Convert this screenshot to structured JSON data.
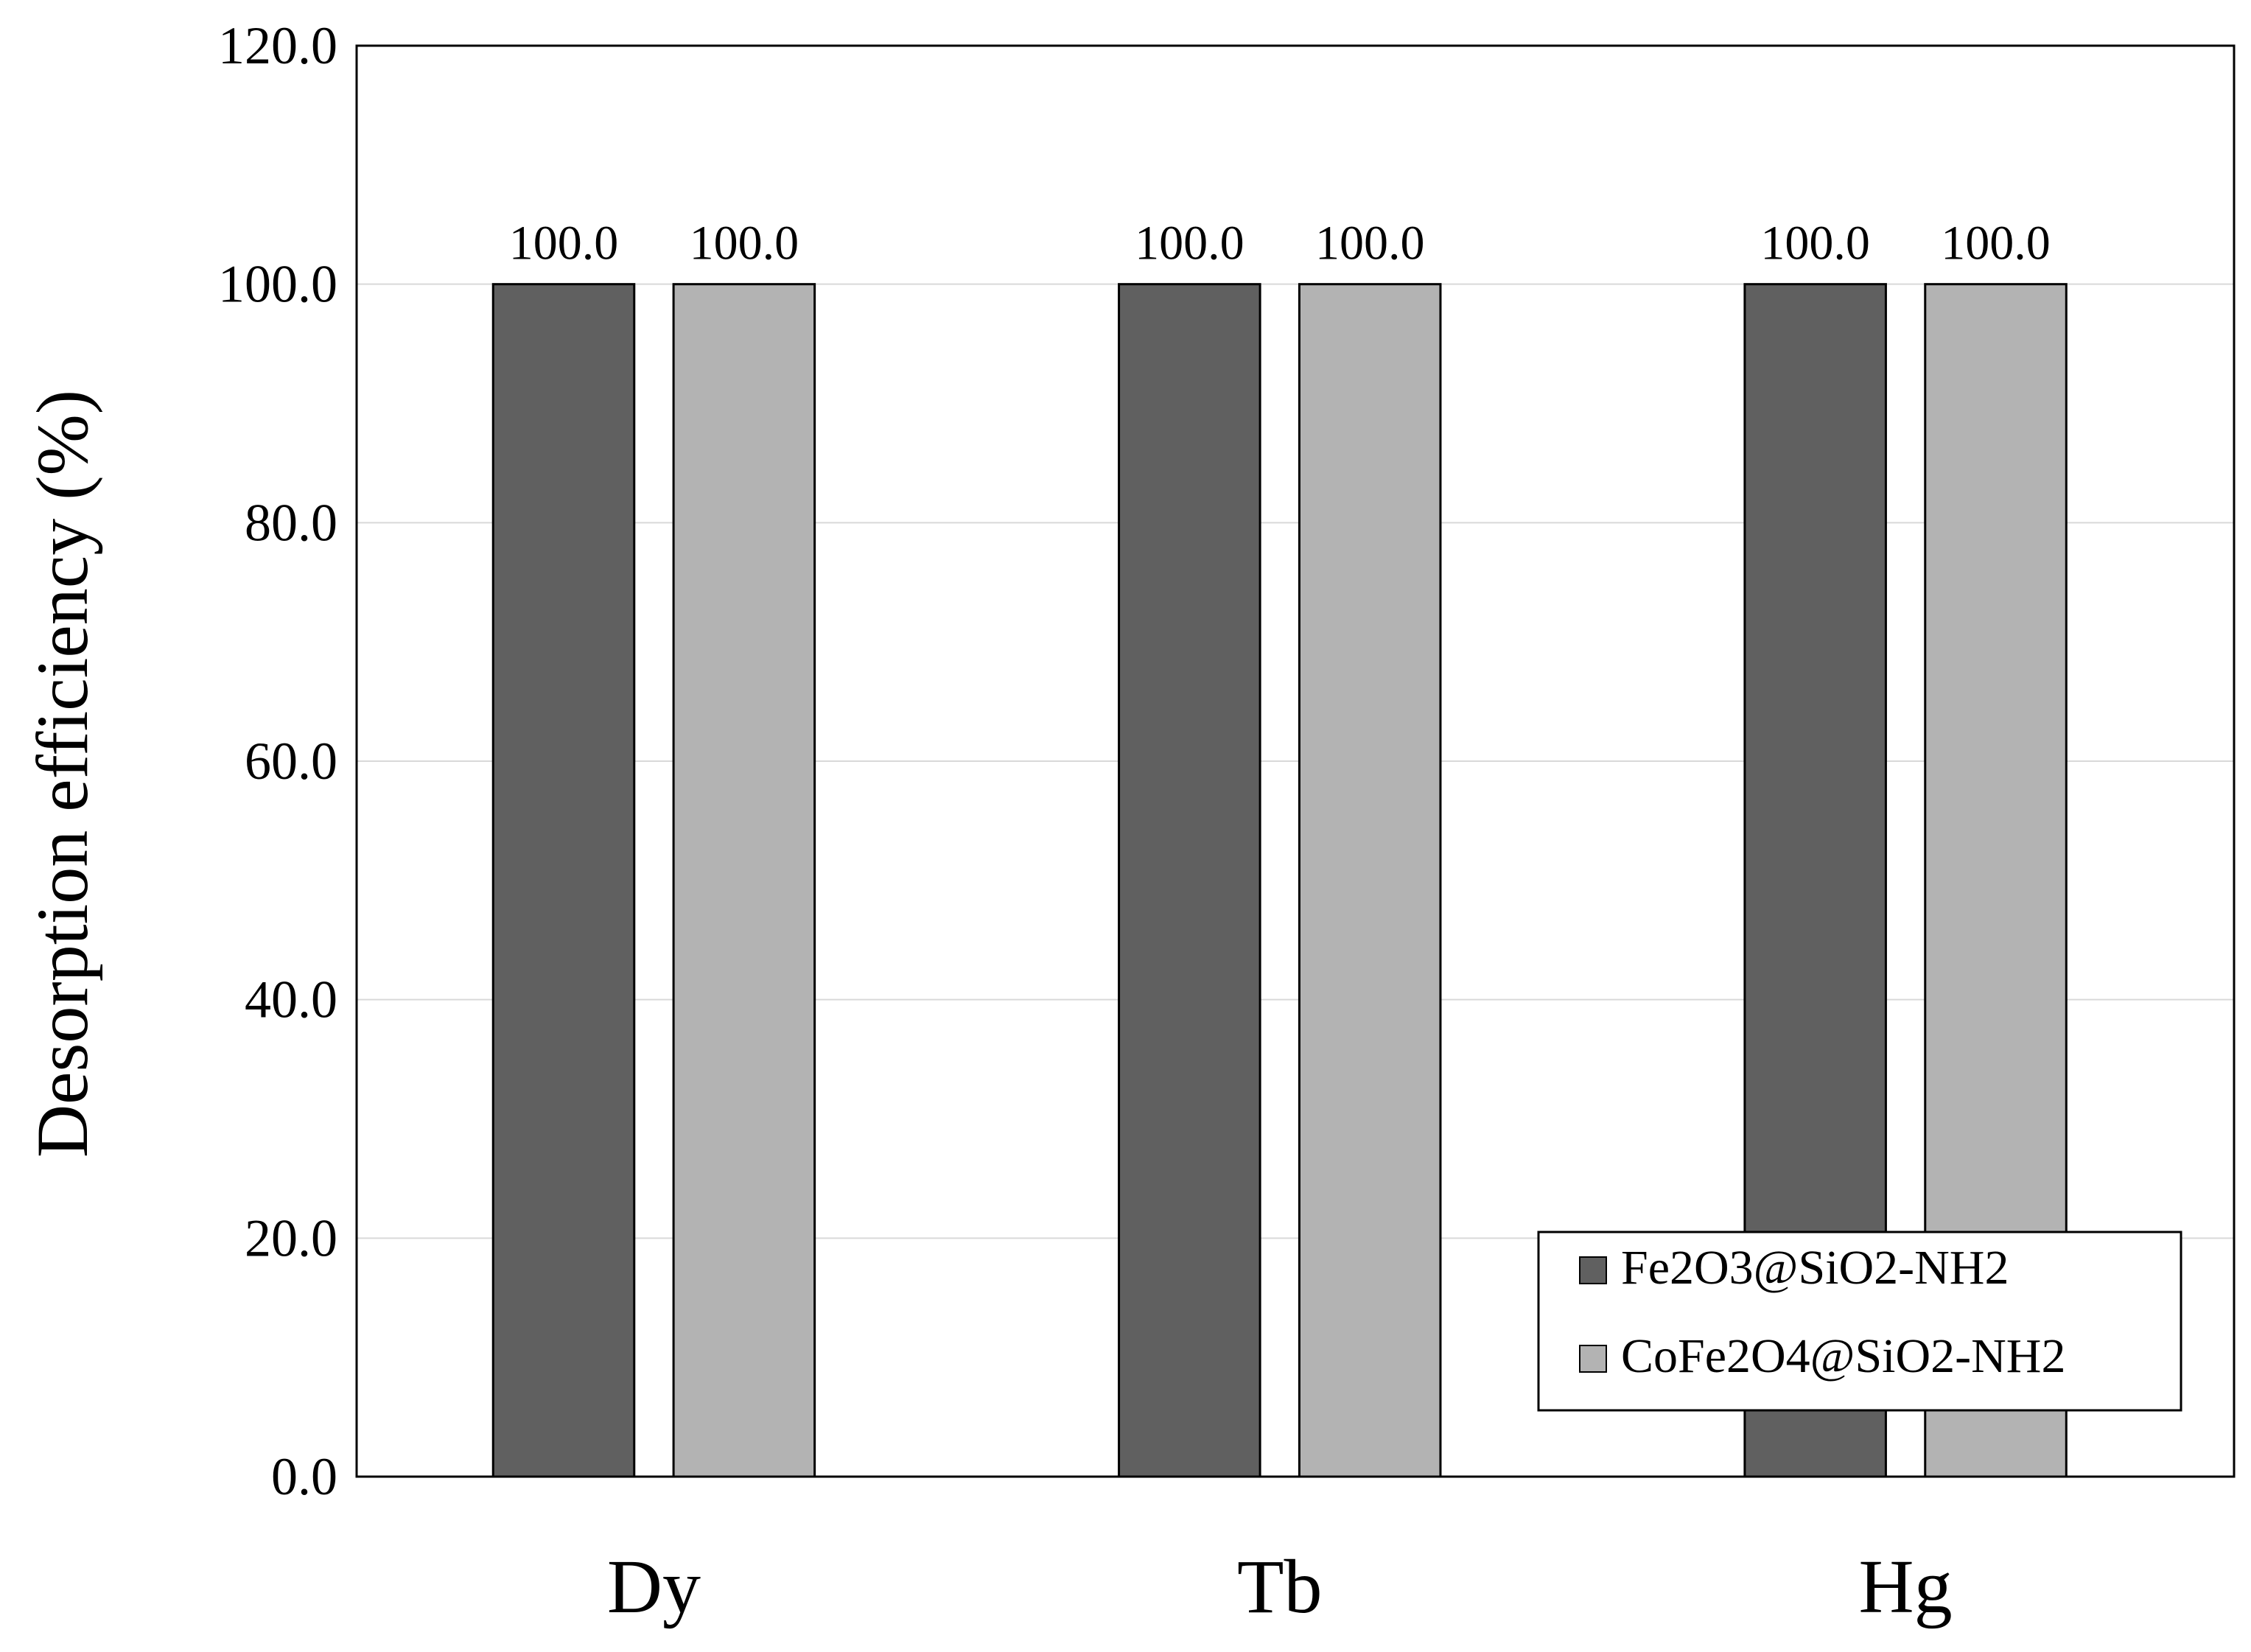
{
  "chart_data": {
    "type": "bar",
    "title": "",
    "xlabel": "",
    "ylabel": "Desorption efficiency (%)",
    "ylim": [
      0,
      120
    ],
    "ytick_step": 20,
    "ytick_format_decimals": 1,
    "grid": true,
    "legend_position": "bottom-right",
    "categories": [
      "Dy",
      "Tb",
      "Hg"
    ],
    "series": [
      {
        "name": "Fe2O3@SiO2-NH2",
        "color": "#606060",
        "values": [
          100.0,
          100.0,
          100.0
        ],
        "labels": [
          "100.0",
          "100.0",
          "100.0"
        ]
      },
      {
        "name": "CoFe2O4@SiO2-NH2",
        "color": "#b3b3b3",
        "values": [
          100.0,
          100.0,
          100.0
        ],
        "labels": [
          "100.0",
          "100.0",
          "100.0"
        ]
      }
    ]
  }
}
